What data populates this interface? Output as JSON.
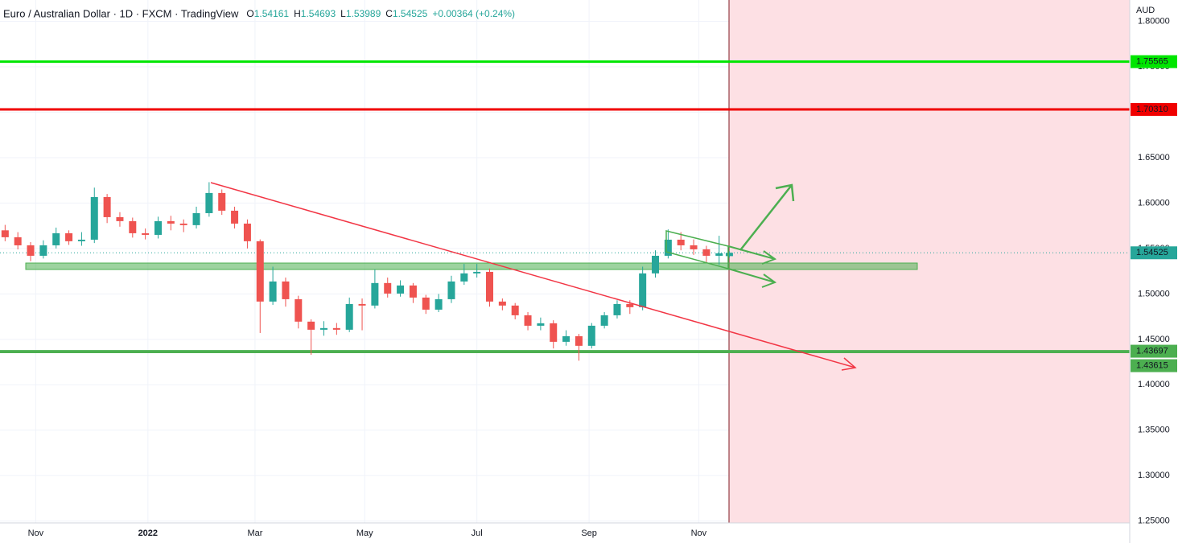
{
  "chart_data": {
    "type": "candlestick",
    "title": "Euro / Australian Dollar · 1D · FXCM · TradingView",
    "ohlc_labels": [
      "O",
      "H",
      "L",
      "C"
    ],
    "change_label": "+0.00364 (+0.24%)",
    "unit": "AUD",
    "up_color": "#26a69a",
    "down_color": "#ef5350",
    "x": [
      2,
      7,
      12,
      17,
      22,
      27,
      32,
      37,
      42,
      47,
      52,
      57,
      62,
      67,
      72,
      77,
      82,
      87,
      92,
      97,
      102,
      107,
      112,
      117,
      122,
      127,
      132,
      137,
      142,
      147,
      152,
      157,
      162,
      167,
      172,
      177,
      182,
      187,
      192,
      197,
      202,
      207,
      212,
      217,
      222,
      227,
      232,
      237,
      242,
      247,
      252,
      257,
      262,
      267,
      272,
      277,
      282,
      286
    ],
    "open": [
      1.57,
      1.5624,
      1.5535,
      1.542,
      1.5535,
      1.5668,
      1.558,
      1.5597,
      1.6066,
      1.5845,
      1.5801,
      1.5668,
      1.565,
      1.5801,
      1.5774,
      1.5757,
      1.5889,
      1.6111,
      1.5916,
      1.5774,
      1.558,
      1.4916,
      1.5137,
      1.4942,
      1.4695,
      1.4606,
      1.4624,
      1.4606,
      1.4889,
      1.4872,
      1.512,
      1.5004,
      1.5093,
      1.496,
      1.4827,
      1.4942,
      1.5137,
      1.5226,
      1.5243,
      1.4916,
      1.4872,
      1.4765,
      1.465,
      1.4677,
      1.4473,
      1.4535,
      1.4429,
      1.465,
      1.4765,
      1.4889,
      1.4854,
      1.5226,
      1.542,
      1.5597,
      1.5535,
      1.5491,
      1.542,
      1.54161
    ],
    "high": [
      1.576,
      1.568,
      1.557,
      1.559,
      1.573,
      1.57,
      1.568,
      1.617,
      1.61,
      1.59,
      1.584,
      1.572,
      1.585,
      1.586,
      1.582,
      1.596,
      1.623,
      1.615,
      1.596,
      1.582,
      1.56,
      1.53,
      1.518,
      1.498,
      1.472,
      1.47,
      1.468,
      1.496,
      1.495,
      1.527,
      1.518,
      1.515,
      1.512,
      1.499,
      1.5,
      1.52,
      1.533,
      1.533,
      1.528,
      1.495,
      1.49,
      1.48,
      1.474,
      1.471,
      1.46,
      1.456,
      1.468,
      1.48,
      1.493,
      1.493,
      1.53,
      1.548,
      1.571,
      1.568,
      1.56,
      1.553,
      1.564,
      1.54693
    ],
    "low": [
      1.558,
      1.549,
      1.536,
      1.539,
      1.55,
      1.554,
      1.553,
      1.556,
      1.578,
      1.574,
      1.562,
      1.56,
      1.561,
      1.57,
      1.568,
      1.572,
      1.585,
      1.587,
      1.572,
      1.55,
      1.457,
      1.488,
      1.486,
      1.462,
      1.433,
      1.454,
      1.455,
      1.458,
      1.46,
      1.484,
      1.496,
      1.497,
      1.49,
      1.478,
      1.48,
      1.49,
      1.51,
      1.518,
      1.486,
      1.482,
      1.472,
      1.46,
      1.46,
      1.44,
      1.443,
      1.4265,
      1.44,
      1.462,
      1.473,
      1.478,
      1.482,
      1.518,
      1.539,
      1.548,
      1.543,
      1.535,
      1.532,
      1.53989
    ],
    "close": [
      1.5624,
      1.5535,
      1.542,
      1.5535,
      1.5668,
      1.558,
      1.5597,
      1.6066,
      1.5845,
      1.5801,
      1.5668,
      1.565,
      1.5801,
      1.5774,
      1.5757,
      1.5889,
      1.6111,
      1.5916,
      1.5774,
      1.558,
      1.4916,
      1.5137,
      1.4942,
      1.4695,
      1.4606,
      1.4624,
      1.4606,
      1.4889,
      1.4872,
      1.512,
      1.5004,
      1.5093,
      1.496,
      1.4827,
      1.4942,
      1.5137,
      1.5226,
      1.5243,
      1.4916,
      1.4872,
      1.4765,
      1.465,
      1.4677,
      1.4473,
      1.4535,
      1.4429,
      1.465,
      1.4765,
      1.4889,
      1.4854,
      1.5226,
      1.542,
      1.5597,
      1.5535,
      1.5491,
      1.542,
      1.5447,
      1.54525
    ],
    "last_color": "#26a69a",
    "levels": [
      {
        "value": 1.75565,
        "color": "#00e600"
      },
      {
        "value": 1.7031,
        "label": "1.70310",
        "color": "#f00000"
      },
      {
        "value": 1.43697,
        "color": "#4caf50"
      },
      {
        "value": 1.43615,
        "color": "#4caf50"
      }
    ],
    "xlim": [
      0,
      443
    ],
    "ylim": [
      1.248,
      1.8235
    ],
    "xticks": [
      {
        "value": 14,
        "label": "Nov"
      },
      {
        "value": 58,
        "label": "2022"
      },
      {
        "value": 100,
        "label": "Mar"
      },
      {
        "value": 143,
        "label": "May"
      },
      {
        "value": 187,
        "label": "Jul"
      },
      {
        "value": 231,
        "label": "Sep"
      },
      {
        "value": 274,
        "label": "Nov"
      }
    ],
    "yticks": [
      {
        "value": 1.25,
        "label": "1.25000"
      },
      {
        "value": 1.3,
        "label": "1.30000"
      },
      {
        "value": 1.35,
        "label": "1.35000"
      },
      {
        "value": 1.4,
        "label": "1.40000"
      },
      {
        "value": 1.45,
        "label": "1.45000"
      },
      {
        "value": 1.5,
        "label": "1.50000"
      },
      {
        "value": 1.55,
        "label": "1.55000"
      },
      {
        "value": 1.6,
        "label": "1.60000"
      },
      {
        "value": 1.65,
        "label": "1.65000"
      },
      {
        "value": 1.7,
        "label": "1.70000"
      },
      {
        "value": 1.75,
        "label": "1.75000"
      },
      {
        "value": 1.8,
        "label": "1.80000"
      }
    ],
    "grid": true
  }
}
